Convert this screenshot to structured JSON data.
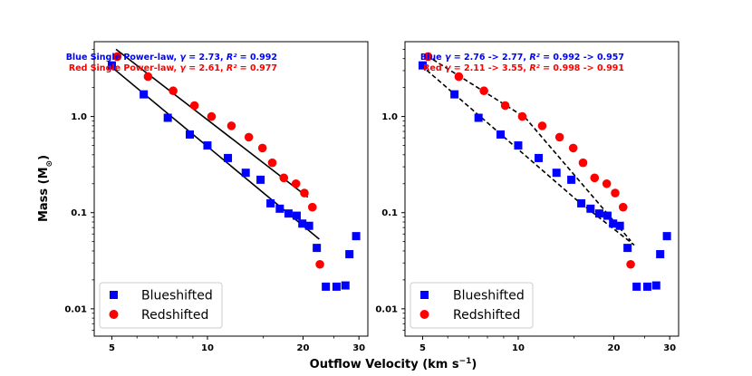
{
  "figure": {
    "xlabel": "Outflow Velocity (km s",
    "xlabel_sup": "−1",
    "xlabel_tail": ")",
    "ylabel": "Mass (M",
    "ylabel_sub": "⊙",
    "ylabel_tail": ")"
  },
  "colors": {
    "blue": "#0000ff",
    "red": "#ff0000",
    "fit": "#000000"
  },
  "chart_data": [
    {
      "type": "scatter",
      "panel": "left",
      "xscale": "log",
      "yscale": "log",
      "xlim": [
        4.4,
        32
      ],
      "ylim": [
        0.0052,
        6.0
      ],
      "xticks": [
        5,
        10,
        20,
        30
      ],
      "xtick_labels": [
        "5",
        "10",
        "20",
        "30"
      ],
      "yticks": [
        0.01,
        0.1,
        1.0
      ],
      "ytick_labels": [
        "0.01",
        "0.1",
        "1.0"
      ],
      "annotations": [
        {
          "text": "Blue Single Power-law, γ = 2.73, R² = 0.992",
          "color": "blue"
        },
        {
          "text": "Red Single Power-law, γ = 2.61, R² = 0.977",
          "color": "red"
        }
      ],
      "legend": {
        "position": "bottom-left",
        "entries": [
          "Blueshifted",
          "Redshifted"
        ]
      },
      "series": [
        {
          "name": "Blueshifted",
          "marker": "square",
          "color": "blue",
          "x": [
            5.0,
            6.3,
            7.5,
            8.8,
            10.0,
            11.6,
            13.2,
            14.7,
            15.8,
            16.9,
            18.0,
            19.1,
            19.9,
            20.9,
            22.1,
            23.6,
            25.5,
            27.2,
            28.0,
            29.4
          ],
          "y": [
            3.4,
            1.7,
            0.97,
            0.65,
            0.5,
            0.37,
            0.26,
            0.22,
            0.125,
            0.11,
            0.098,
            0.093,
            0.077,
            0.073,
            0.043,
            0.017,
            0.017,
            0.0175,
            0.037,
            0.057
          ]
        },
        {
          "name": "Redshifted",
          "marker": "circle",
          "color": "red",
          "x": [
            5.2,
            6.5,
            7.8,
            9.1,
            10.3,
            11.9,
            13.5,
            14.9,
            16.0,
            17.4,
            19.0,
            20.2,
            21.4,
            22.6
          ],
          "y": [
            4.2,
            2.6,
            1.85,
            1.3,
            1.0,
            0.8,
            0.61,
            0.47,
            0.33,
            0.23,
            0.2,
            0.16,
            0.114,
            0.029
          ]
        }
      ],
      "fits": [
        {
          "style": "solid",
          "x": [
            5.15,
            20.7
          ],
          "y": [
            5.0,
            0.145
          ]
        },
        {
          "style": "solid",
          "x": [
            4.95,
            22.5
          ],
          "y": [
            3.35,
            0.053
          ]
        }
      ]
    },
    {
      "type": "scatter",
      "panel": "right",
      "xscale": "log",
      "yscale": "log",
      "xlim": [
        4.4,
        32
      ],
      "ylim": [
        0.0052,
        6.0
      ],
      "xticks": [
        5,
        10,
        20,
        30
      ],
      "xtick_labels": [
        "5",
        "10",
        "20",
        "30"
      ],
      "yticks": [
        0.01,
        0.1,
        1.0
      ],
      "ytick_labels": [
        "0.01",
        "0.1",
        "1.0"
      ],
      "annotations": [
        {
          "text": "Blue γ = 2.76 -> 2.77, R² = 0.992 -> 0.957",
          "color": "blue"
        },
        {
          "text": "Red γ = 2.11 -> 3.55, R² = 0.998 -> 0.991",
          "color": "red"
        }
      ],
      "legend": {
        "position": "bottom-left",
        "entries": [
          "Blueshifted",
          "Redshifted"
        ]
      },
      "series": [
        {
          "name": "Blueshifted",
          "marker": "square",
          "color": "blue",
          "x": [
            5.0,
            6.3,
            7.5,
            8.8,
            10.0,
            11.6,
            13.2,
            14.7,
            15.8,
            16.9,
            18.0,
            19.1,
            19.9,
            20.9,
            22.1,
            23.6,
            25.5,
            27.2,
            28.0,
            29.4
          ],
          "y": [
            3.4,
            1.7,
            0.97,
            0.65,
            0.5,
            0.37,
            0.26,
            0.22,
            0.125,
            0.11,
            0.098,
            0.093,
            0.077,
            0.073,
            0.043,
            0.017,
            0.017,
            0.0175,
            0.037,
            0.057
          ]
        },
        {
          "name": "Redshifted",
          "marker": "circle",
          "color": "red",
          "x": [
            5.2,
            6.5,
            7.8,
            9.1,
            10.3,
            11.9,
            13.5,
            14.9,
            16.0,
            17.4,
            19.0,
            20.2,
            21.4,
            22.6
          ],
          "y": [
            4.2,
            2.6,
            1.85,
            1.3,
            1.0,
            0.8,
            0.61,
            0.47,
            0.33,
            0.23,
            0.2,
            0.16,
            0.114,
            0.029
          ]
        }
      ],
      "fits": [
        {
          "style": "dashed",
          "x": [
            4.95,
            15.3,
            23.2
          ],
          "y": [
            3.4,
            0.135,
            0.046
          ]
        },
        {
          "style": "dashed",
          "x": [
            5.15,
            10.5,
            22.6
          ],
          "y": [
            4.3,
            0.98,
            0.051
          ]
        }
      ]
    }
  ]
}
